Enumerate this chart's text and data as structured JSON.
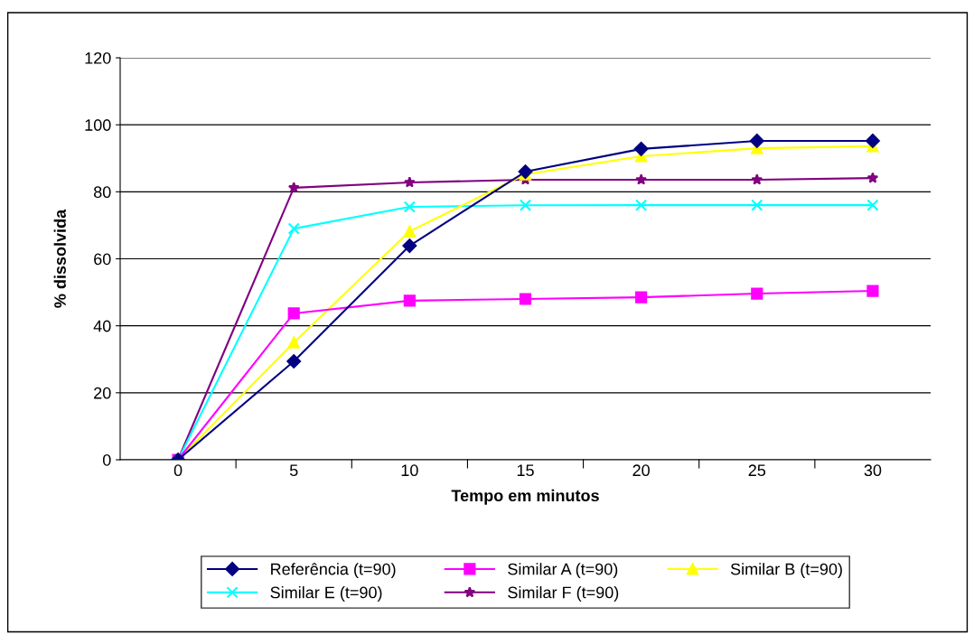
{
  "chart_data": {
    "type": "line",
    "xlabel": "Tempo em minutos",
    "ylabel": "% dissolvida",
    "categories": [
      "0",
      "5",
      "10",
      "15",
      "20",
      "25",
      "30"
    ],
    "ylim": [
      0,
      120
    ],
    "yticks": [
      0,
      20,
      40,
      60,
      80,
      100,
      120
    ],
    "grid": "y",
    "legend": "bottom",
    "series": [
      {
        "name": "Referência (t=90)",
        "color": "#000080",
        "marker": "diamond",
        "values": [
          0,
          29.4,
          63.9,
          86,
          92.8,
          95.2,
          95.2
        ]
      },
      {
        "name": "Similar A (t=90)",
        "color": "#ff00ff",
        "marker": "square",
        "values": [
          0,
          43.7,
          47.5,
          48,
          48.5,
          49.6,
          50.4
        ]
      },
      {
        "name": "Similar B (t=90)",
        "color": "#ffff00",
        "marker": "triangle",
        "values": [
          0,
          35,
          68.2,
          85.2,
          90.6,
          93,
          93.6
        ]
      },
      {
        "name": "Similar E (t=90)",
        "color": "#00ffff",
        "marker": "cross",
        "values": [
          0,
          69,
          75.5,
          76,
          76,
          76,
          76
        ]
      },
      {
        "name": "Similar F (t=90)",
        "color": "#800080",
        "marker": "star",
        "values": [
          0,
          81.2,
          82.8,
          83.6,
          83.6,
          83.6,
          84.1
        ]
      }
    ]
  }
}
